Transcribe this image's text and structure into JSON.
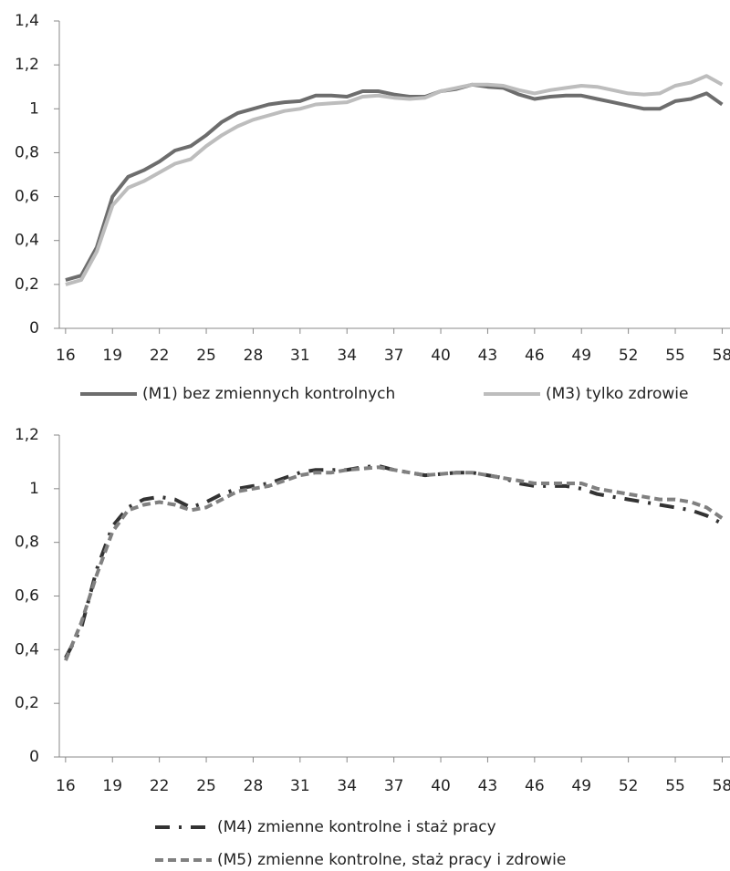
{
  "chart_data": [
    {
      "type": "line",
      "x": [
        16,
        17,
        18,
        19,
        20,
        21,
        22,
        23,
        24,
        25,
        26,
        27,
        28,
        29,
        30,
        31,
        32,
        33,
        34,
        35,
        36,
        37,
        38,
        39,
        40,
        41,
        42,
        43,
        44,
        45,
        46,
        47,
        48,
        49,
        50,
        51,
        52,
        53,
        54,
        55,
        56,
        57,
        58
      ],
      "xlim": [
        15.6,
        58.5
      ],
      "xticks": [
        16,
        19,
        22,
        25,
        28,
        31,
        34,
        37,
        40,
        43,
        46,
        49,
        52,
        55,
        58
      ],
      "ylim": [
        0,
        1.4
      ],
      "yticks": [
        0,
        {
          "value": 0.2,
          "label": "0,2"
        },
        {
          "value": 0.4,
          "label": "0,4"
        },
        {
          "value": 0.6,
          "label": "0,6"
        },
        {
          "value": 0.8,
          "label": "0,8"
        },
        1,
        {
          "value": 1.2,
          "label": "1,2"
        },
        {
          "value": 1.4,
          "label": "1,4"
        }
      ],
      "legend": "bottom",
      "series": [
        {
          "name": "(M1) bez zmiennych kontrolnych",
          "color": "#6d6d6d",
          "dash": "solid",
          "values": [
            0.22,
            0.24,
            0.37,
            0.6,
            0.69,
            0.72,
            0.76,
            0.81,
            0.83,
            0.88,
            0.94,
            0.98,
            1.0,
            1.02,
            1.03,
            1.035,
            1.06,
            1.06,
            1.055,
            1.08,
            1.08,
            1.065,
            1.055,
            1.055,
            1.08,
            1.09,
            1.11,
            1.1,
            1.095,
            1.065,
            1.045,
            1.055,
            1.06,
            1.06,
            1.045,
            1.03,
            1.015,
            1.0,
            1.0,
            1.035,
            1.045,
            1.07,
            1.02
          ]
        },
        {
          "name": "(M3) tylko zdrowie",
          "color": "#bdbdbd",
          "dash": "solid",
          "values": [
            0.2,
            0.22,
            0.35,
            0.56,
            0.64,
            0.67,
            0.71,
            0.75,
            0.77,
            0.83,
            0.88,
            0.92,
            0.95,
            0.97,
            0.99,
            1.0,
            1.02,
            1.025,
            1.03,
            1.055,
            1.06,
            1.05,
            1.045,
            1.05,
            1.08,
            1.095,
            1.11,
            1.11,
            1.105,
            1.085,
            1.07,
            1.085,
            1.095,
            1.105,
            1.1,
            1.085,
            1.07,
            1.065,
            1.07,
            1.105,
            1.12,
            1.15,
            1.11
          ]
        }
      ]
    },
    {
      "type": "line",
      "x": [
        16,
        17,
        18,
        19,
        20,
        21,
        22,
        23,
        24,
        25,
        26,
        27,
        28,
        29,
        30,
        31,
        32,
        33,
        34,
        35,
        36,
        37,
        38,
        39,
        40,
        41,
        42,
        43,
        44,
        45,
        46,
        47,
        48,
        49,
        50,
        51,
        52,
        53,
        54,
        55,
        56,
        57,
        58
      ],
      "xlim": [
        15.6,
        58.5
      ],
      "xticks": [
        16,
        19,
        22,
        25,
        28,
        31,
        34,
        37,
        40,
        43,
        46,
        49,
        52,
        55,
        58
      ],
      "ylim": [
        0,
        1.2
      ],
      "yticks": [
        0,
        {
          "value": 0.2,
          "label": "0,2"
        },
        {
          "value": 0.4,
          "label": "0,4"
        },
        {
          "value": 0.6,
          "label": "0,6"
        },
        {
          "value": 0.8,
          "label": "0,8"
        },
        1,
        {
          "value": 1.2,
          "label": "1,2"
        }
      ],
      "legend": "bottom",
      "series": [
        {
          "name": "(M4) zmienne kontrolne i staż pracy",
          "color": "#333333",
          "dash": "dash-dot",
          "values": [
            0.37,
            0.48,
            0.7,
            0.86,
            0.93,
            0.96,
            0.97,
            0.96,
            0.93,
            0.95,
            0.98,
            1.0,
            1.01,
            1.02,
            1.04,
            1.06,
            1.07,
            1.07,
            1.07,
            1.08,
            1.085,
            1.07,
            1.06,
            1.05,
            1.055,
            1.06,
            1.06,
            1.05,
            1.04,
            1.02,
            1.01,
            1.01,
            1.01,
            1.0,
            0.98,
            0.97,
            0.96,
            0.95,
            0.94,
            0.93,
            0.92,
            0.9,
            0.87
          ]
        },
        {
          "name": "(M5) zmienne kontrolne, staż pracy i zdrowie",
          "color": "#808080",
          "dash": "dash",
          "values": [
            0.36,
            0.5,
            0.68,
            0.84,
            0.92,
            0.94,
            0.95,
            0.94,
            0.92,
            0.93,
            0.96,
            0.99,
            1.0,
            1.01,
            1.03,
            1.05,
            1.06,
            1.06,
            1.07,
            1.075,
            1.08,
            1.07,
            1.06,
            1.05,
            1.055,
            1.06,
            1.06,
            1.05,
            1.04,
            1.03,
            1.02,
            1.02,
            1.02,
            1.02,
            1.0,
            0.99,
            0.98,
            0.97,
            0.96,
            0.96,
            0.95,
            0.93,
            0.89
          ]
        }
      ]
    }
  ]
}
